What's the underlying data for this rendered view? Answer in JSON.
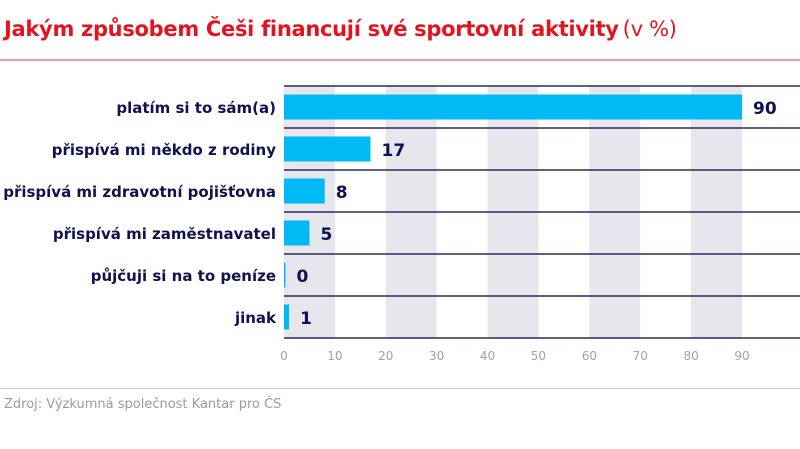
{
  "chart_data": {
    "type": "bar",
    "orientation": "horizontal",
    "title": "Jakým způsobem Češi financují své sportovní aktivity",
    "unit": "(v %)",
    "categories": [
      "platím si to sám(a)",
      "přispívá mi někdo z rodiny",
      "přispívá mi zdravotní pojišťovna",
      "přispívá mi zaměstnavatel",
      "půjčuji si na to peníze",
      "jinak"
    ],
    "values": [
      90,
      17,
      8,
      5,
      0,
      1
    ],
    "xlim": [
      0,
      100
    ],
    "xticks": [
      0,
      10,
      20,
      30,
      40,
      50,
      60,
      70,
      80,
      90
    ],
    "grid": "alternating vertical bands",
    "colors": {
      "bar": "#00b9f5",
      "label": "#0f1150",
      "title": "#e3141f",
      "band": "#e6e6ec",
      "tick": "#a0a0b8"
    }
  },
  "source": "Zdroj: Výzkumná společnost Kantar pro ČS"
}
